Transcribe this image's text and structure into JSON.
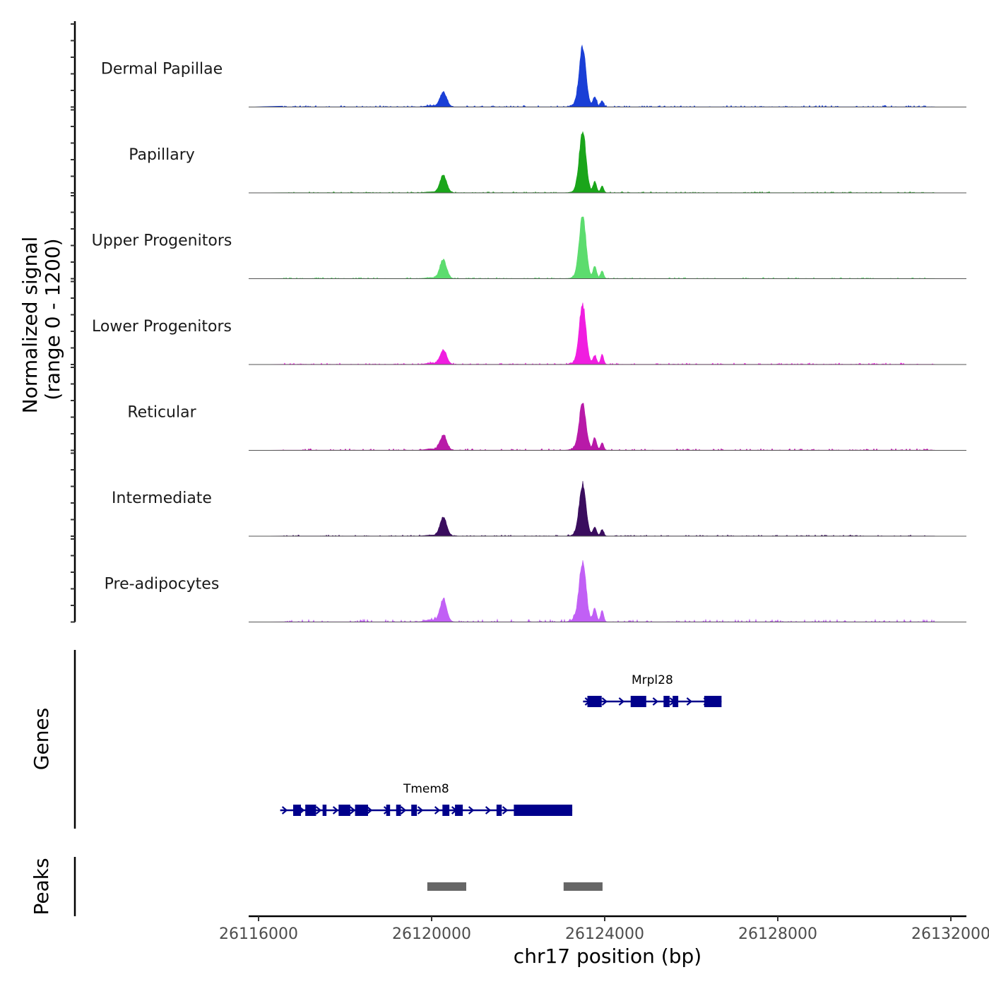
{
  "chart_data": {
    "type": "area",
    "title": "",
    "ylabel": "Normalized signal\n(range 0 - 1200)",
    "ylim": [
      0,
      1200
    ],
    "xlabel": "chr17 position (bp)",
    "xlim": [
      26115400,
      26132000
    ],
    "xticks": [
      26116000,
      26120000,
      26124000,
      26128000,
      26132000
    ],
    "xtick_labels": [
      "26116000",
      "26120000",
      "26124000",
      "26128000",
      "26132000"
    ],
    "tracks": [
      {
        "name": "Dermal Papillae",
        "color": "#1a3fd6",
        "peak1": 290,
        "peak2": 1150,
        "sub": [
          200,
          120
        ],
        "noise": 30
      },
      {
        "name": "Papillary",
        "color": "#1aa51a",
        "peak1": 340,
        "peak2": 1190,
        "sub": [
          210,
          130
        ],
        "noise": 20
      },
      {
        "name": "Upper Progenitors",
        "color": "#5cdc6e",
        "peak1": 360,
        "peak2": 1200,
        "sub": [
          230,
          150
        ],
        "noise": 22
      },
      {
        "name": "Lower Progenitors",
        "color": "#f01ee0",
        "peak1": 280,
        "peak2": 1160,
        "sub": [
          170,
          190
        ],
        "noise": 28
      },
      {
        "name": "Reticular",
        "color": "#b81aa8",
        "peak1": 290,
        "peak2": 900,
        "sub": [
          240,
          150
        ],
        "noise": 32
      },
      {
        "name": "Intermediate",
        "color": "#3a0d5e",
        "peak1": 370,
        "peak2": 1000,
        "sub": [
          170,
          130
        ],
        "noise": 22
      },
      {
        "name": "Pre-adipocytes",
        "color": "#c160f5",
        "peak1": 430,
        "peak2": 1150,
        "sub": [
          260,
          220
        ],
        "noise": 52
      }
    ],
    "genes_label": "Genes",
    "genes": [
      {
        "name": "Mrpl28",
        "strand": "+",
        "start": 26123500,
        "end": 26126700,
        "exons": [
          [
            26123600,
            26123930
          ],
          [
            26124600,
            26124960
          ],
          [
            26125360,
            26125500
          ],
          [
            26125570,
            26125700
          ],
          [
            26126300,
            26126700
          ]
        ]
      },
      {
        "name": "Tmem8",
        "strand": "+",
        "start": 26116500,
        "end": 26123250,
        "exons": [
          [
            26116800,
            26116980
          ],
          [
            26117080,
            26117330
          ],
          [
            26117480,
            26117570
          ],
          [
            26117850,
            26118120
          ],
          [
            26118230,
            26118530
          ],
          [
            26118950,
            26119040
          ],
          [
            26119180,
            26119290
          ],
          [
            26119530,
            26119660
          ],
          [
            26120250,
            26120410
          ],
          [
            26120540,
            26120720
          ],
          [
            26121500,
            26121620
          ],
          [
            26121900,
            26123250
          ]
        ]
      }
    ],
    "gene_color": "#00008b",
    "peaks_label": "Peaks",
    "peaks": [
      [
        26119900,
        26120800
      ],
      [
        26123050,
        26123950
      ]
    ],
    "peak_color": "#666666"
  }
}
